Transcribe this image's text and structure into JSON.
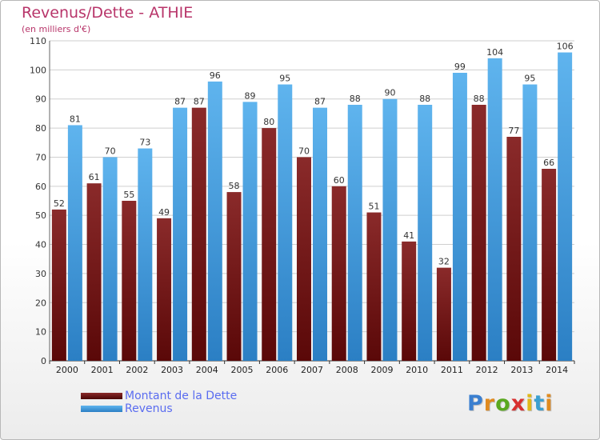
{
  "chart_data": {
    "type": "bar",
    "title": "Revenus/Dette - ATHIE",
    "subtitle": "(en milliers d'€)",
    "categories": [
      "2000",
      "2001",
      "2002",
      "2003",
      "2004",
      "2005",
      "2006",
      "2007",
      "2008",
      "2009",
      "2010",
      "2011",
      "2012",
      "2013",
      "2014"
    ],
    "series": [
      {
        "name": "Montant de la Dette",
        "color": "#7a1a1a",
        "values": [
          52,
          61,
          55,
          49,
          87,
          58,
          80,
          70,
          60,
          51,
          41,
          32,
          88,
          77,
          66
        ]
      },
      {
        "name": "Revenus",
        "color": "#4aa3e6",
        "values": [
          81,
          70,
          73,
          87,
          96,
          89,
          95,
          87,
          88,
          90,
          88,
          99,
          104,
          95,
          106
        ]
      }
    ],
    "ylim": [
      0,
      110
    ],
    "yticks": [
      0,
      10,
      20,
      30,
      40,
      50,
      60,
      70,
      80,
      90,
      100,
      110
    ],
    "grid": true,
    "legend": "bottom-left"
  },
  "logo": {
    "letters": [
      "P",
      "r",
      "o",
      "x",
      "i",
      "t",
      "i"
    ],
    "colors": [
      "#3a7fd0",
      "#e08a1e",
      "#5aa820",
      "#d83030",
      "#e0b818",
      "#3a9fd0",
      "#e08a1e"
    ]
  }
}
